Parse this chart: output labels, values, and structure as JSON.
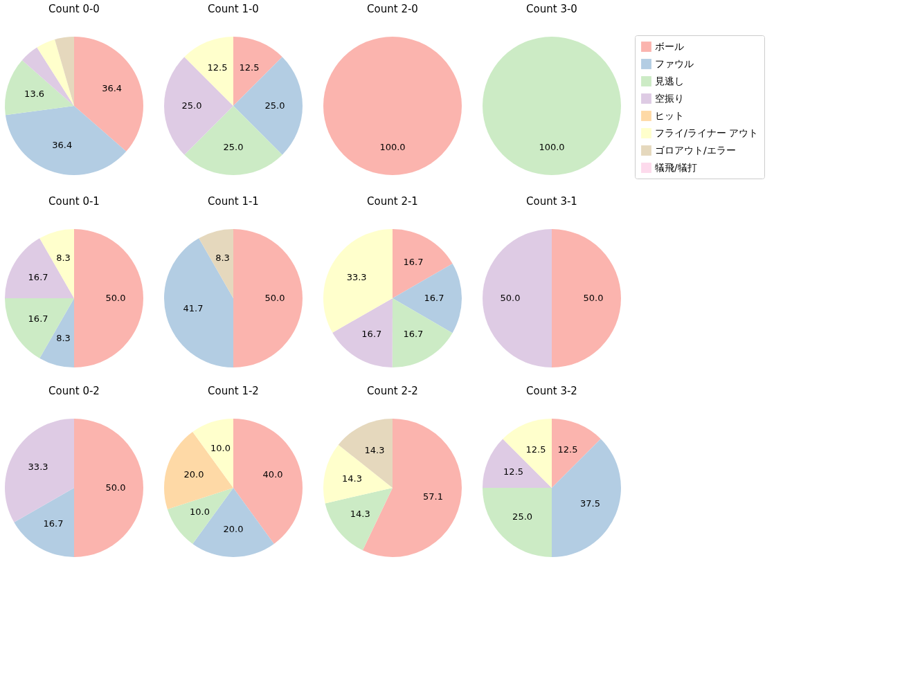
{
  "chart_data": [
    {
      "type": "pie",
      "title": "Count 0-0",
      "categories": [
        null,
        null,
        null,
        null,
        null,
        null,
        null,
        null
      ],
      "values": [
        36.4,
        36.4,
        13.6,
        4.5,
        0,
        4.5,
        4.5,
        0
      ],
      "value_labels": [
        "36.4",
        "36.4",
        "13.6",
        null,
        null,
        null,
        null,
        null
      ],
      "colors": [
        "#fbb4ae",
        "#b3cde3",
        "#ccebc5",
        "#decbe4",
        "#fed9a6",
        "#ffffcc",
        "#e5d8bd",
        "#fddaec"
      ],
      "legend": false
    },
    {
      "type": "pie",
      "title": "Count 1-0",
      "categories": [
        null,
        null,
        null,
        null,
        null,
        null,
        null,
        null
      ],
      "values": [
        12.5,
        25.0,
        25.0,
        25.0,
        0,
        12.5,
        0,
        0
      ],
      "value_labels": [
        "12.5",
        "25.0",
        "25.0",
        "25.0",
        null,
        "12.5",
        null,
        null
      ],
      "colors": [
        "#fbb4ae",
        "#b3cde3",
        "#ccebc5",
        "#decbe4",
        "#fed9a6",
        "#ffffcc",
        "#e5d8bd",
        "#fddaec"
      ],
      "legend": false
    },
    {
      "type": "pie",
      "title": "Count 2-0",
      "categories": [
        null,
        null,
        null,
        null,
        null,
        null,
        null,
        null
      ],
      "values": [
        100.0,
        0,
        0,
        0,
        0,
        0,
        0,
        0
      ],
      "value_labels": [
        "100.0",
        null,
        null,
        null,
        null,
        null,
        null,
        null
      ],
      "colors": [
        "#fbb4ae",
        "#b3cde3",
        "#ccebc5",
        "#decbe4",
        "#fed9a6",
        "#ffffcc",
        "#e5d8bd",
        "#fddaec"
      ],
      "legend": false
    },
    {
      "type": "pie",
      "title": "Count 3-0",
      "categories": [
        "ボール",
        "ファウル",
        "見逃し",
        "空振り",
        "ヒット",
        "フライ/ライナー アウト",
        "ゴロアウト/エラー",
        "犠飛/犠打"
      ],
      "values": [
        0,
        0,
        100.0,
        0,
        0,
        0,
        0,
        0
      ],
      "value_labels": [
        null,
        null,
        "100.0",
        null,
        null,
        null,
        null,
        null
      ],
      "colors": [
        "#fbb4ae",
        "#b3cde3",
        "#ccebc5",
        "#decbe4",
        "#fed9a6",
        "#ffffcc",
        "#e5d8bd",
        "#fddaec"
      ],
      "legend": "right"
    },
    {
      "type": "pie",
      "title": "Count 0-1",
      "categories": [
        null,
        null,
        null,
        null,
        null,
        null,
        null,
        null
      ],
      "values": [
        50.0,
        8.3,
        16.7,
        16.7,
        0,
        8.3,
        0,
        0
      ],
      "value_labels": [
        "50.0",
        "8.3",
        "16.7",
        "16.7",
        null,
        "8.3",
        null,
        null
      ],
      "colors": [
        "#fbb4ae",
        "#b3cde3",
        "#ccebc5",
        "#decbe4",
        "#fed9a6",
        "#ffffcc",
        "#e5d8bd",
        "#fddaec"
      ],
      "legend": false
    },
    {
      "type": "pie",
      "title": "Count 1-1",
      "categories": [
        null,
        null,
        null,
        null,
        null,
        null,
        null,
        null
      ],
      "values": [
        50.0,
        41.7,
        0,
        0,
        0,
        0,
        8.3,
        0
      ],
      "value_labels": [
        "50.0",
        "41.7",
        null,
        null,
        null,
        null,
        "8.3",
        null
      ],
      "colors": [
        "#fbb4ae",
        "#b3cde3",
        "#ccebc5",
        "#decbe4",
        "#fed9a6",
        "#ffffcc",
        "#e5d8bd",
        "#fddaec"
      ],
      "legend": false
    },
    {
      "type": "pie",
      "title": "Count 2-1",
      "categories": [
        null,
        null,
        null,
        null,
        null,
        null,
        null,
        null
      ],
      "values": [
        16.7,
        16.7,
        16.7,
        16.7,
        0,
        33.3,
        0,
        0
      ],
      "value_labels": [
        "16.7",
        "16.7",
        "16.7",
        "16.7",
        null,
        "33.3",
        null,
        null
      ],
      "colors": [
        "#fbb4ae",
        "#b3cde3",
        "#ccebc5",
        "#decbe4",
        "#fed9a6",
        "#ffffcc",
        "#e5d8bd",
        "#fddaec"
      ],
      "legend": false
    },
    {
      "type": "pie",
      "title": "Count 3-1",
      "categories": [
        null,
        null,
        null,
        null,
        null,
        null,
        null,
        null
      ],
      "values": [
        50.0,
        0,
        0,
        50.0,
        0,
        0,
        0,
        0
      ],
      "value_labels": [
        "50.0",
        null,
        null,
        "50.0",
        null,
        null,
        null,
        null
      ],
      "colors": [
        "#fbb4ae",
        "#b3cde3",
        "#ccebc5",
        "#decbe4",
        "#fed9a6",
        "#ffffcc",
        "#e5d8bd",
        "#fddaec"
      ],
      "legend": false
    },
    {
      "type": "pie",
      "title": "Count 0-2",
      "categories": [
        null,
        null,
        null,
        null,
        null,
        null,
        null,
        null
      ],
      "values": [
        50.0,
        16.7,
        0,
        33.3,
        0,
        0,
        0,
        0
      ],
      "value_labels": [
        "50.0",
        "16.7",
        null,
        "33.3",
        null,
        null,
        null,
        null
      ],
      "colors": [
        "#fbb4ae",
        "#b3cde3",
        "#ccebc5",
        "#decbe4",
        "#fed9a6",
        "#ffffcc",
        "#e5d8bd",
        "#fddaec"
      ],
      "legend": false
    },
    {
      "type": "pie",
      "title": "Count 1-2",
      "categories": [
        null,
        null,
        null,
        null,
        null,
        null,
        null,
        null
      ],
      "values": [
        40.0,
        20.0,
        10.0,
        0,
        20.0,
        10.0,
        0,
        0
      ],
      "value_labels": [
        "40.0",
        "20.0",
        "10.0",
        null,
        "20.0",
        "10.0",
        null,
        null
      ],
      "colors": [
        "#fbb4ae",
        "#b3cde3",
        "#ccebc5",
        "#decbe4",
        "#fed9a6",
        "#ffffcc",
        "#e5d8bd",
        "#fddaec"
      ],
      "legend": false
    },
    {
      "type": "pie",
      "title": "Count 2-2",
      "categories": [
        null,
        null,
        null,
        null,
        null,
        null,
        null,
        null
      ],
      "values": [
        57.1,
        0,
        14.3,
        0,
        0,
        14.3,
        14.3,
        0
      ],
      "value_labels": [
        "57.1",
        null,
        "14.3",
        null,
        null,
        "14.3",
        "14.3",
        null
      ],
      "colors": [
        "#fbb4ae",
        "#b3cde3",
        "#ccebc5",
        "#decbe4",
        "#fed9a6",
        "#ffffcc",
        "#e5d8bd",
        "#fddaec"
      ],
      "legend": false
    },
    {
      "type": "pie",
      "title": "Count 3-2",
      "categories": [
        null,
        null,
        null,
        null,
        null,
        null,
        null,
        null
      ],
      "values": [
        12.5,
        37.5,
        25.0,
        12.5,
        0,
        12.5,
        0,
        0
      ],
      "value_labels": [
        "12.5",
        "37.5",
        "25.0",
        "12.5",
        null,
        "12.5",
        null,
        null
      ],
      "colors": [
        "#fbb4ae",
        "#b3cde3",
        "#ccebc5",
        "#decbe4",
        "#fed9a6",
        "#ffffcc",
        "#e5d8bd",
        "#fddaec"
      ],
      "legend": false
    }
  ]
}
